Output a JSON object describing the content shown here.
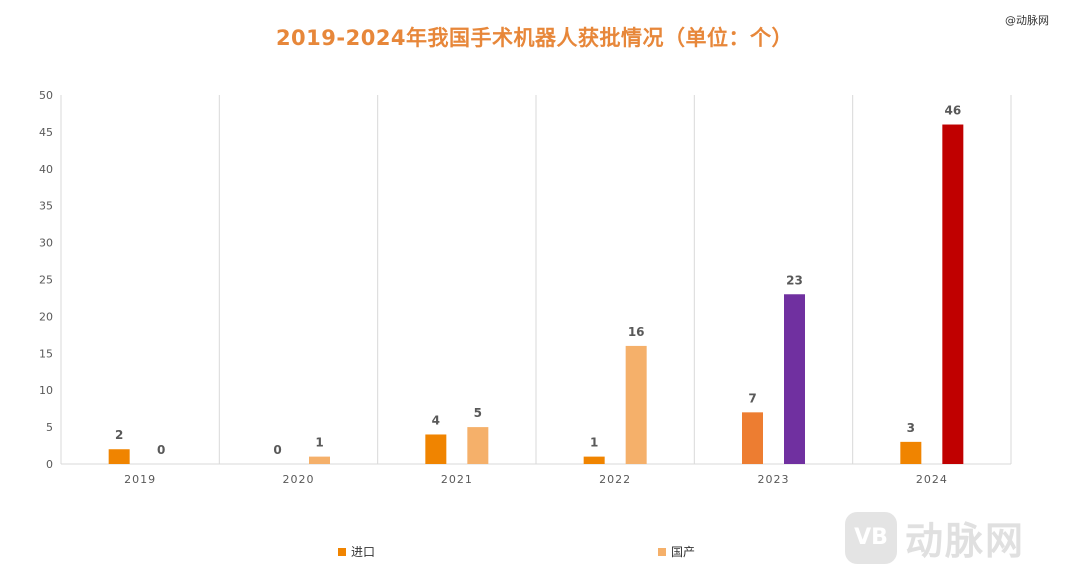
{
  "chart_data": {
    "type": "bar",
    "title": "2019-2024年我国手术机器人获批情况（单位：个）",
    "categories": [
      "2019",
      "2020",
      "2021",
      "2022",
      "2023",
      "2024"
    ],
    "series": [
      {
        "name": "进口",
        "values": [
          2,
          0,
          4,
          1,
          7,
          3
        ],
        "color": "#F08400"
      },
      {
        "name": "国产",
        "values": [
          0,
          1,
          5,
          16,
          23,
          46
        ],
        "color": "#F5B06A"
      }
    ],
    "bar_color_overrides": {
      "进口": {
        "2023": "#ED7D31"
      },
      "国产": {
        "2023": "#7030A0",
        "2024": "#C00000"
      }
    },
    "ylim": [
      0,
      50
    ],
    "yticks": [
      0,
      5,
      10,
      15,
      20,
      25,
      30,
      35,
      40,
      45,
      50
    ],
    "xlabel": "",
    "ylabel": "",
    "grid": "vertical category separators",
    "legend": "bottom"
  },
  "watermark": {
    "small": "@动脉网",
    "logo_mark": "VB",
    "logo_text": "动脉网"
  }
}
